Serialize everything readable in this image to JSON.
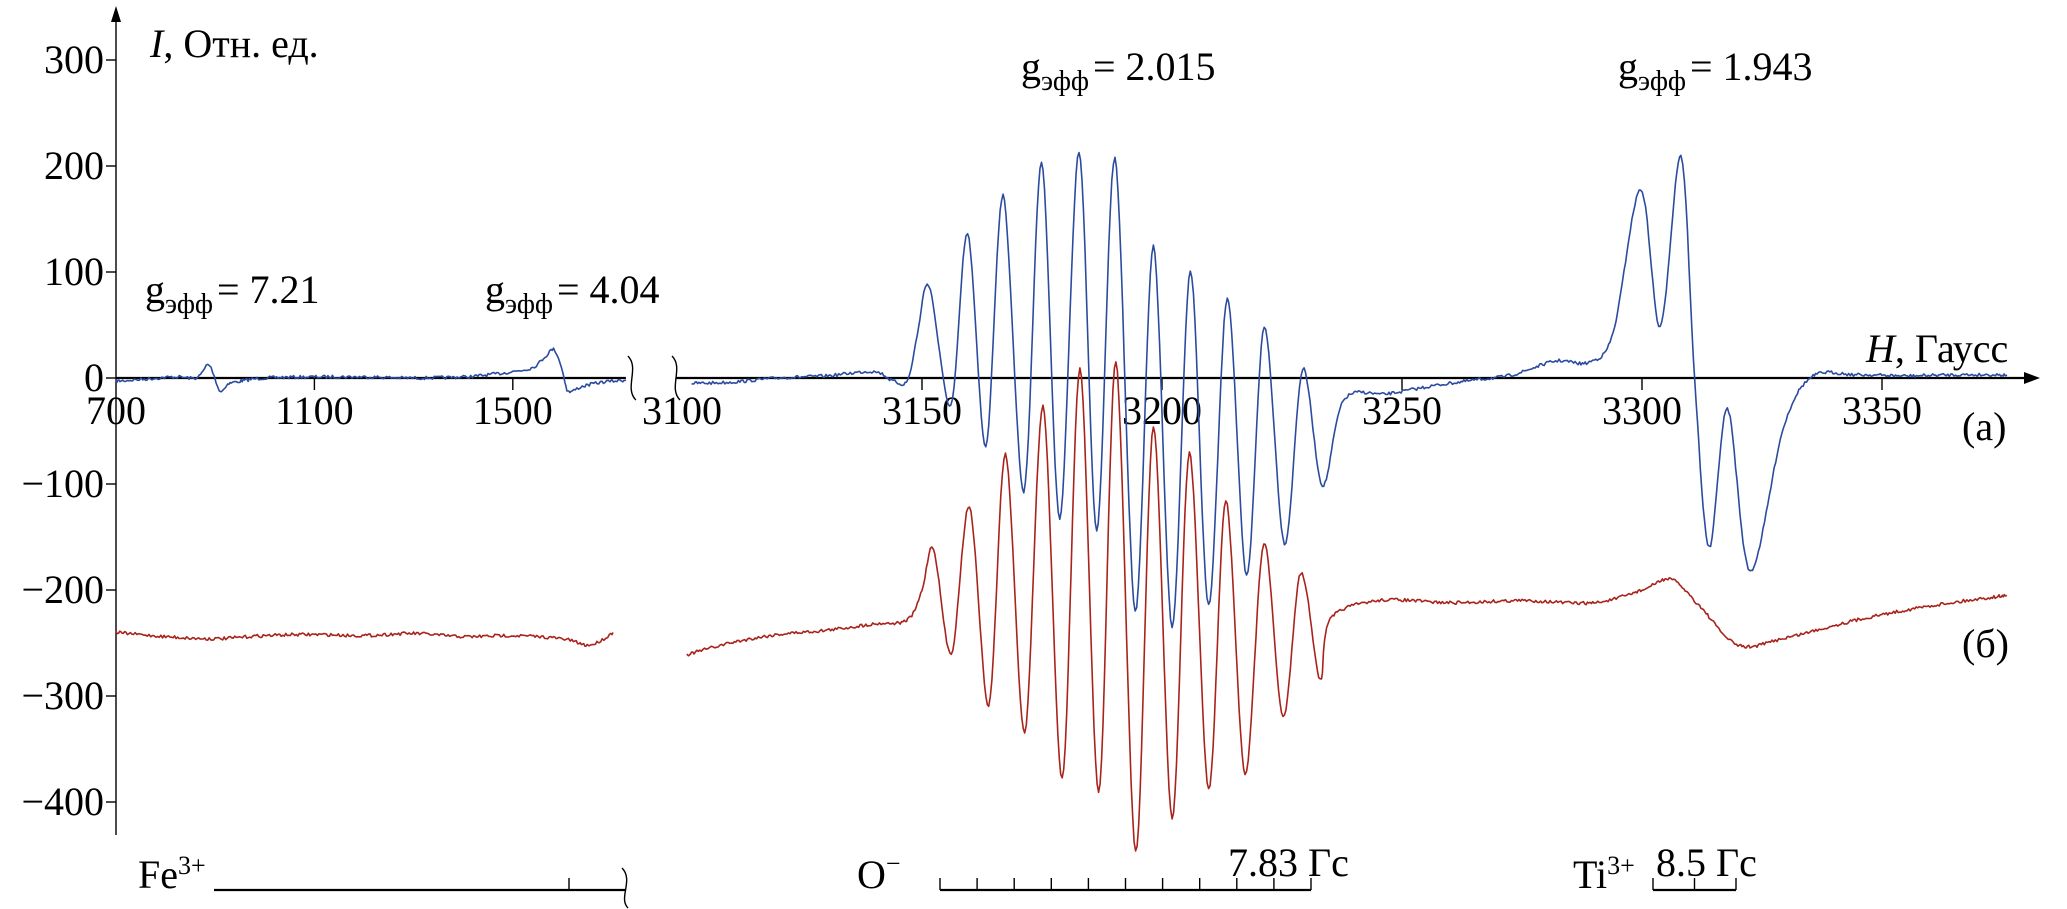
{
  "chart_data": {
    "type": "line",
    "title": "",
    "xlabel": {
      "symbol": "H",
      "text": ", Гаусс"
    },
    "ylabel": {
      "symbol": "I",
      "text": ", Отн. ед."
    },
    "x_axis_broken": true,
    "x_segments": [
      {
        "range": [
          700,
          1728
        ],
        "ticks": [
          700,
          1100,
          1500
        ],
        "tick_labels": [
          "700",
          "1100",
          "1500"
        ]
      },
      {
        "range": [
          3100,
          3378
        ],
        "ticks": [
          3100,
          3150,
          3200,
          3250,
          3300,
          3350
        ],
        "tick_labels": [
          "3100",
          "3150",
          "3200",
          "3250",
          "3300",
          "3350"
        ]
      }
    ],
    "ylim": [
      -400,
      300
    ],
    "y_ticks": [
      300,
      200,
      100,
      0,
      -100,
      -200,
      -300,
      -400
    ],
    "y_tick_labels": [
      "300",
      "200",
      "100",
      "0",
      "−100",
      "−200",
      "−300",
      "−400"
    ],
    "grid": false,
    "series": [
      {
        "name": "(a)",
        "color": "#2b4c9e",
        "segments": [
          [
            [
              700,
              -3
            ],
            [
              760,
              -1
            ],
            [
              820,
              1
            ],
            [
              860,
              0
            ],
            [
              875,
              6
            ],
            [
              885,
              13
            ],
            [
              895,
              6
            ],
            [
              905,
              -8
            ],
            [
              912,
              -13
            ],
            [
              925,
              -6
            ],
            [
              950,
              -3
            ],
            [
              1000,
              0
            ],
            [
              1100,
              1
            ],
            [
              1200,
              1
            ],
            [
              1300,
              0
            ],
            [
              1400,
              1
            ],
            [
              1450,
              3
            ],
            [
              1500,
              6
            ],
            [
              1540,
              10
            ],
            [
              1565,
              20
            ],
            [
              1582,
              27
            ],
            [
              1595,
              15
            ],
            [
              1605,
              -3
            ],
            [
              1613,
              -13
            ],
            [
              1640,
              -8
            ],
            [
              1680,
              -4
            ],
            [
              1728,
              -2
            ]
          ],
          [
            [
              3102,
              -5
            ],
            [
              3110,
              -4
            ],
            [
              3120,
              0
            ],
            [
              3130,
              2
            ],
            [
              3140,
              6
            ],
            [
              3144,
              -3
            ],
            [
              3147,
              -2
            ],
            [
              3149,
              40
            ],
            [
              3151.5,
              87
            ],
            [
              3156,
              -26
            ],
            [
              3159.5,
              136
            ],
            [
              3163.3,
              -64
            ],
            [
              3166.9,
              172
            ],
            [
              3171.2,
              -107
            ],
            [
              3174.9,
              204
            ],
            [
              3178.7,
              -132
            ],
            [
              3182.7,
              213
            ],
            [
              3186.4,
              -143
            ],
            [
              3190.2,
              207
            ],
            [
              3194.4,
              -219
            ],
            [
              3198.2,
              124
            ],
            [
              3202.1,
              -234
            ],
            [
              3205.9,
              101
            ],
            [
              3209.7,
              -215
            ],
            [
              3213.6,
              76
            ],
            [
              3217.6,
              -187
            ],
            [
              3221.3,
              48
            ],
            [
              3225.5,
              -156
            ],
            [
              3229.3,
              8
            ],
            [
              3233.4,
              -101
            ],
            [
              3237.9,
              -21
            ],
            [
              3247,
              -15
            ],
            [
              3257,
              -7
            ],
            [
              3265,
              -2
            ],
            [
              3273,
              3
            ],
            [
              3282,
              16
            ],
            [
              3289,
              15
            ],
            [
              3294,
              43
            ],
            [
              3299.7,
              178
            ],
            [
              3303.8,
              48
            ],
            [
              3308.1,
              210
            ],
            [
              3311,
              -4
            ],
            [
              3314,
              -160
            ],
            [
              3317.8,
              -29
            ],
            [
              3322.5,
              -182
            ],
            [
              3329.4,
              -48
            ],
            [
              3335.4,
              1
            ],
            [
              3345,
              3
            ],
            [
              3355,
              2
            ],
            [
              3365,
              3
            ],
            [
              3376,
              3
            ]
          ]
        ]
      },
      {
        "name": "(б)",
        "color": "#a8231c",
        "segments": [
          [
            [
              700,
              -240
            ],
            [
              800,
              -244
            ],
            [
              900,
              -246
            ],
            [
              1000,
              -243
            ],
            [
              1100,
              -242
            ],
            [
              1200,
              -243
            ],
            [
              1300,
              -241
            ],
            [
              1400,
              -244
            ],
            [
              1500,
              -243
            ],
            [
              1600,
              -246
            ],
            [
              1650,
              -252
            ],
            [
              1680,
              -247
            ],
            [
              1702,
              -240
            ]
          ],
          [
            [
              3101,
              -261
            ],
            [
              3110,
              -250
            ],
            [
              3120,
              -242
            ],
            [
              3130,
              -238
            ],
            [
              3140,
              -232
            ],
            [
              3147,
              -228
            ],
            [
              3150,
              -200
            ],
            [
              3152.4,
              -161
            ],
            [
              3156.1,
              -260
            ],
            [
              3159.9,
              -121
            ],
            [
              3163.9,
              -309
            ],
            [
              3167.4,
              -72
            ],
            [
              3171.4,
              -334
            ],
            [
              3175.2,
              -27
            ],
            [
              3179.2,
              -378
            ],
            [
              3182.9,
              8
            ],
            [
              3186.8,
              -391
            ],
            [
              3190.4,
              15
            ],
            [
              3194.5,
              -446
            ],
            [
              3198.2,
              -46
            ],
            [
              3202.1,
              -415
            ],
            [
              3205.7,
              -71
            ],
            [
              3209.7,
              -388
            ],
            [
              3213.3,
              -116
            ],
            [
              3217.3,
              -373
            ],
            [
              3221.2,
              -156
            ],
            [
              3225.2,
              -320
            ],
            [
              3228.9,
              -184
            ],
            [
              3232.9,
              -285
            ],
            [
              3235,
              -228
            ],
            [
              3245,
              -210
            ],
            [
              3260,
              -212
            ],
            [
              3275,
              -210
            ],
            [
              3290,
              -212
            ],
            [
              3300,
              -200
            ],
            [
              3306,
              -190
            ],
            [
              3312,
              -215
            ],
            [
              3320,
              -252
            ],
            [
              3330,
              -245
            ],
            [
              3345,
              -228
            ],
            [
              3360,
              -215
            ],
            [
              3376,
              -205
            ]
          ]
        ]
      }
    ],
    "annotations": [
      {
        "symbol": "g",
        "subscript": "эфф",
        "value": "= 7.21",
        "at": [
          885,
          13
        ]
      },
      {
        "symbol": "g",
        "subscript": "эфф",
        "value": "= 4.04",
        "at": [
          1582,
          27
        ]
      },
      {
        "symbol": "g",
        "subscript": "эфф",
        "value": "= 2.015",
        "at": [
          3186,
          213
        ]
      },
      {
        "symbol": "g",
        "subscript": "эфф",
        "value": "= 1.943",
        "at": [
          3308,
          210
        ]
      }
    ],
    "curve_labels": [
      "(a)",
      "(б)"
    ],
    "scale_bars": [
      {
        "ion": "Fe",
        "charge": "3+",
        "label": ""
      },
      {
        "ion": "O",
        "charge": "−",
        "label": "7.83 Гс",
        "divisions": 10
      },
      {
        "ion": "Ti",
        "charge": "3+",
        "label": "8.5 Гс",
        "divisions": 2
      }
    ]
  }
}
